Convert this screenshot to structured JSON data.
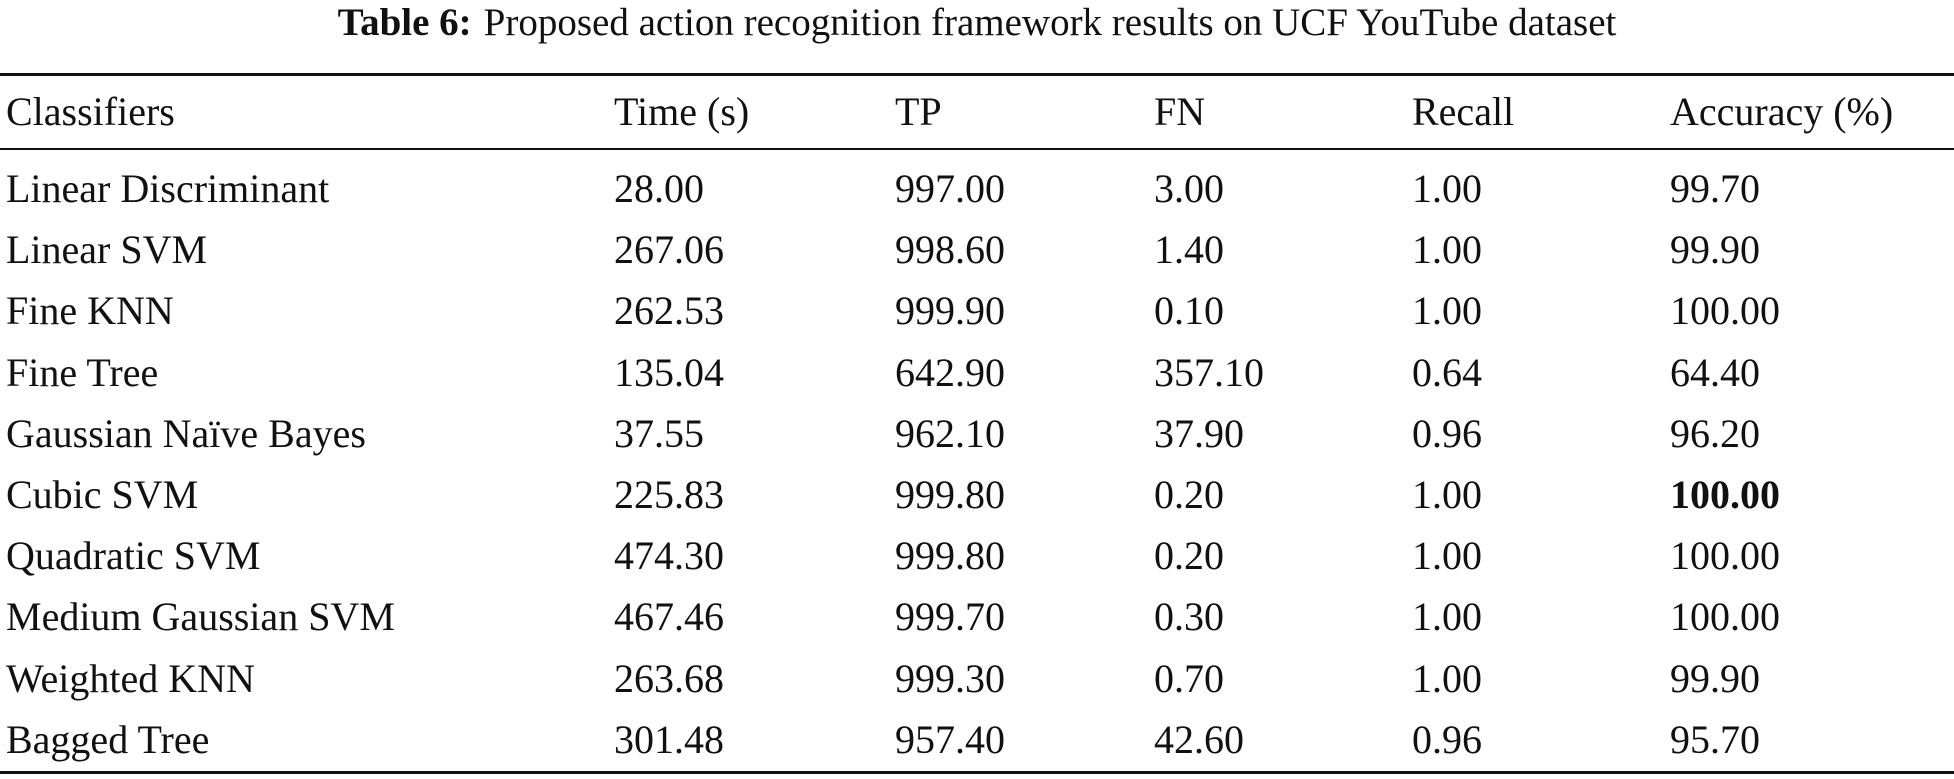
{
  "caption": {
    "label": "Table 6:",
    "text": "Proposed action recognition framework results on UCF YouTube dataset"
  },
  "table": {
    "header": [
      "Classifiers",
      "Time (s)",
      "TP",
      "FN",
      "Recall",
      "Accuracy (%)"
    ],
    "rows": [
      [
        "Linear Discriminant",
        "28.00",
        "997.00",
        "3.00",
        "1.00",
        "99.70"
      ],
      [
        "Linear SVM",
        "267.06",
        "998.60",
        "1.40",
        "1.00",
        "99.90"
      ],
      [
        "Fine KNN",
        "262.53",
        "999.90",
        "0.10",
        "1.00",
        "100.00"
      ],
      [
        "Fine Tree",
        "135.04",
        "642.90",
        "357.10",
        "0.64",
        "64.40"
      ],
      [
        "Gaussian Naïve Bayes",
        "37.55",
        "962.10",
        "37.90",
        "0.96",
        "96.20"
      ],
      [
        "Cubic SVM",
        "225.83",
        "999.80",
        "0.20",
        "1.00",
        "100.00"
      ],
      [
        "Quadratic SVM",
        "474.30",
        "999.80",
        "0.20",
        "1.00",
        "100.00"
      ],
      [
        "Medium Gaussian SVM",
        "467.46",
        "999.70",
        "0.30",
        "1.00",
        "100.00"
      ],
      [
        "Weighted KNN",
        "263.68",
        "999.30",
        "0.70",
        "1.00",
        "99.90"
      ],
      [
        "Bagged Tree",
        "301.48",
        "957.40",
        "42.60",
        "0.96",
        "95.70"
      ]
    ],
    "bold": [
      [
        5,
        5
      ]
    ]
  }
}
